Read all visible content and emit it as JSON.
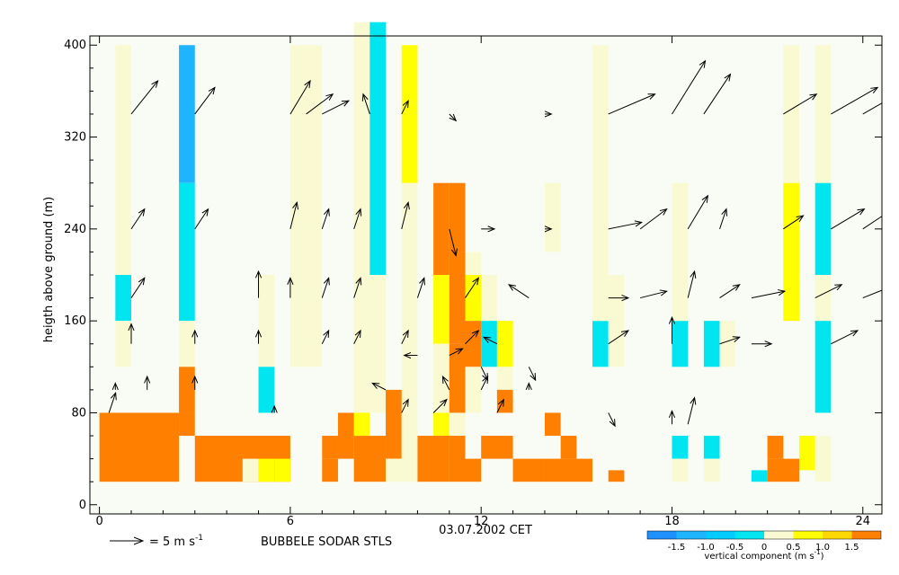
{
  "chart_data": {
    "type": "heatmap",
    "title": "BUBBELE SODAR STLS",
    "xlabel": "03.07.2002 CET",
    "ylabel": "heigth above ground (m)",
    "xlim": [
      -0.3,
      24.6
    ],
    "ylim": [
      -8,
      408
    ],
    "x_ticks": [
      "0",
      "6",
      "12",
      "18",
      "24"
    ],
    "y_ticks": [
      "0",
      "80",
      "160",
      "240",
      "320",
      "400"
    ],
    "time_step_h": 0.5,
    "height_step_m": 20,
    "colorbar": {
      "label": "vertical component (m s",
      "label_exponent": "-1",
      "label_close": ")",
      "tick_labels": [
        "-1.5",
        "-1.0",
        "-0.5",
        "0",
        "0.5",
        "1.0",
        "1.5"
      ],
      "bins": [
        {
          "range": [
            -2.0,
            -1.5
          ],
          "color": "#1e90ff"
        },
        {
          "range": [
            -1.5,
            -1.0
          ],
          "color": "#1eb4ff"
        },
        {
          "range": [
            -1.0,
            -0.5
          ],
          "color": "#00ccff"
        },
        {
          "range": [
            -0.5,
            0.0
          ],
          "color": "#00e5f0"
        },
        {
          "range": [
            0.0,
            0.5
          ],
          "color": "#fafad2"
        },
        {
          "range": [
            0.5,
            1.0
          ],
          "color": "#ffff00"
        },
        {
          "range": [
            1.0,
            1.5
          ],
          "color": "#ffd700"
        },
        {
          "range": [
            1.5,
            2.0
          ],
          "color": "#ff7f00"
        }
      ]
    },
    "vertical_component_cells": {
      "fields": [
        "time_start_h",
        "time_end_h",
        "height_bottom_m",
        "height_top_m",
        "color"
      ],
      "rows": [
        [
          0.5,
          1.0,
          200,
          400,
          "#fafad2"
        ],
        [
          0.5,
          1.0,
          160,
          200,
          "#00e5f0"
        ],
        [
          0.5,
          1.0,
          120,
          160,
          "#fafad2"
        ],
        [
          2.5,
          3.0,
          280,
          400,
          "#1eb4ff"
        ],
        [
          2.5,
          3.0,
          160,
          280,
          "#00e5f0"
        ],
        [
          2.5,
          3.0,
          120,
          160,
          "#fafad2"
        ],
        [
          2.5,
          3.0,
          80,
          120,
          "#ff7f00"
        ],
        [
          5.0,
          5.5,
          120,
          200,
          "#fafad2"
        ],
        [
          5.0,
          5.5,
          80,
          120,
          "#00e5f0"
        ],
        [
          6.0,
          7.0,
          120,
          400,
          "#fafad2"
        ],
        [
          8.0,
          8.5,
          200,
          420,
          "#fafad2"
        ],
        [
          8.0,
          8.5,
          80,
          200,
          "#fafad2"
        ],
        [
          8.5,
          9.0,
          200,
          420,
          "#00e5f0"
        ],
        [
          8.5,
          9.0,
          80,
          200,
          "#fafad2"
        ],
        [
          9.5,
          10.0,
          280,
          400,
          "#ffff00"
        ],
        [
          9.5,
          10.0,
          80,
          280,
          "#fafad2"
        ],
        [
          8.0,
          8.5,
          60,
          80,
          "#ffff00"
        ],
        [
          10.5,
          11.0,
          60,
          80,
          "#ffff00"
        ],
        [
          10.5,
          11.0,
          200,
          280,
          "#ff7f00"
        ],
        [
          10.5,
          11.0,
          140,
          200,
          "#ffff00"
        ],
        [
          10.5,
          11.0,
          80,
          140,
          "#fafad2"
        ],
        [
          11.0,
          11.5,
          220,
          280,
          "#ff7f00"
        ],
        [
          11.0,
          11.5,
          140,
          220,
          "#ff7f00"
        ],
        [
          11.0,
          11.5,
          80,
          140,
          "#ff7f00"
        ],
        [
          11.5,
          12.0,
          200,
          220,
          "#fafad2"
        ],
        [
          11.5,
          12.0,
          160,
          200,
          "#ffff00"
        ],
        [
          11.5,
          12.0,
          120,
          160,
          "#ff7f00"
        ],
        [
          11.5,
          12.0,
          80,
          120,
          "#fafad2"
        ],
        [
          12.0,
          12.5,
          160,
          200,
          "#fafad2"
        ],
        [
          12.0,
          12.5,
          120,
          160,
          "#00e5f0"
        ],
        [
          12.5,
          13.0,
          120,
          160,
          "#ffff00"
        ],
        [
          12.5,
          13.0,
          80,
          120,
          "#fafad2"
        ],
        [
          11.0,
          11.5,
          60,
          80,
          "#fafad2"
        ],
        [
          14.0,
          14.5,
          220,
          280,
          "#fafad2"
        ],
        [
          15.5,
          16.0,
          200,
          400,
          "#fafad2"
        ],
        [
          15.5,
          16.0,
          120,
          160,
          "#00e5f0"
        ],
        [
          15.5,
          16.0,
          160,
          200,
          "#fafad2"
        ],
        [
          16.0,
          16.5,
          120,
          200,
          "#fafad2"
        ],
        [
          18.0,
          18.5,
          120,
          160,
          "#00e5f0"
        ],
        [
          18.0,
          18.5,
          160,
          280,
          "#fafad2"
        ],
        [
          18.0,
          18.5,
          40,
          60,
          "#00e5f0"
        ],
        [
          18.0,
          18.5,
          20,
          40,
          "#fafad2"
        ],
        [
          19.0,
          19.5,
          120,
          160,
          "#00e5f0"
        ],
        [
          19.5,
          20.0,
          120,
          160,
          "#fafad2"
        ],
        [
          19.0,
          19.5,
          40,
          60,
          "#00e5f0"
        ],
        [
          19.0,
          19.5,
          20,
          40,
          "#fafad2"
        ],
        [
          20.5,
          21.0,
          20,
          30,
          "#00e5f0"
        ],
        [
          21.5,
          22.0,
          280,
          400,
          "#fafad2"
        ],
        [
          21.5,
          22.0,
          160,
          280,
          "#ffff00"
        ],
        [
          22.5,
          23.0,
          200,
          400,
          "#fafad2"
        ],
        [
          22.5,
          23.0,
          200,
          280,
          "#00e5f0"
        ],
        [
          22.5,
          23.0,
          160,
          200,
          "#fafad2"
        ],
        [
          22.5,
          23.0,
          80,
          160,
          "#00e5f0"
        ],
        [
          22.0,
          22.5,
          30,
          60,
          "#ffff00"
        ],
        [
          22.5,
          23.0,
          20,
          60,
          "#fafad2"
        ],
        [
          0.0,
          2.5,
          20,
          80,
          "#ff7f00"
        ],
        [
          2.5,
          3.0,
          60,
          80,
          "#ff7f00"
        ],
        [
          3.0,
          6.0,
          20,
          60,
          "#ff7f00"
        ],
        [
          4.5,
          5.0,
          20,
          40,
          "#fafad2"
        ],
        [
          5.0,
          5.5,
          20,
          40,
          "#ffff00"
        ],
        [
          5.5,
          6.0,
          20,
          40,
          "#ffff00"
        ],
        [
          7.0,
          7.5,
          40,
          60,
          "#ff7f00"
        ],
        [
          7.0,
          7.5,
          20,
          40,
          "#ff7f00"
        ],
        [
          7.5,
          8.0,
          40,
          80,
          "#ff7f00"
        ],
        [
          8.0,
          9.0,
          20,
          60,
          "#ff7f00"
        ],
        [
          9.0,
          9.5,
          40,
          100,
          "#ff7f00"
        ],
        [
          9.0,
          9.5,
          20,
          40,
          "#fafad2"
        ],
        [
          9.5,
          10.0,
          20,
          80,
          "#fafad2"
        ],
        [
          10.0,
          11.0,
          20,
          60,
          "#ff7f00"
        ],
        [
          11.0,
          11.5,
          20,
          60,
          "#ff7f00"
        ],
        [
          11.5,
          12.0,
          20,
          40,
          "#ff7f00"
        ],
        [
          12.0,
          13.0,
          40,
          60,
          "#ff7f00"
        ],
        [
          12.5,
          13.0,
          80,
          100,
          "#ff7f00"
        ],
        [
          13.0,
          14.0,
          20,
          40,
          "#ff7f00"
        ],
        [
          14.0,
          15.5,
          20,
          40,
          "#ff7f00"
        ],
        [
          14.5,
          15.0,
          40,
          60,
          "#ff7f00"
        ],
        [
          14.0,
          14.5,
          60,
          80,
          "#ff7f00"
        ],
        [
          16.0,
          16.5,
          20,
          30,
          "#ff7f00"
        ],
        [
          21.0,
          21.5,
          40,
          60,
          "#ff7f00"
        ],
        [
          21.0,
          22.0,
          20,
          40,
          "#ff7f00"
        ]
      ]
    },
    "wind_vectors": {
      "reference_label": "= 5 m s",
      "reference_exponent": "-1",
      "reference_speed_ms": 5,
      "fields": [
        "time_h",
        "height_m",
        "u_ms",
        "v_ms"
      ],
      "rows": [
        [
          1,
          340,
          4,
          5
        ],
        [
          3,
          340,
          3,
          4
        ],
        [
          6,
          340,
          3,
          5
        ],
        [
          6.5,
          340,
          4,
          3
        ],
        [
          7,
          340,
          4,
          2
        ],
        [
          8.5,
          340,
          -1,
          3
        ],
        [
          9.5,
          340,
          1,
          2
        ],
        [
          11,
          340,
          1,
          -1
        ],
        [
          14,
          340,
          1,
          0
        ],
        [
          16,
          340,
          7,
          3
        ],
        [
          18,
          340,
          5,
          8
        ],
        [
          19,
          340,
          4,
          6
        ],
        [
          21.5,
          340,
          5,
          3
        ],
        [
          23,
          340,
          7,
          4
        ],
        [
          24,
          340,
          7,
          4
        ],
        [
          1,
          240,
          2,
          3
        ],
        [
          3,
          240,
          2,
          3
        ],
        [
          6,
          240,
          1,
          4
        ],
        [
          7,
          240,
          1,
          3
        ],
        [
          8,
          240,
          1,
          3
        ],
        [
          9.5,
          240,
          1,
          4
        ],
        [
          11,
          240,
          1,
          -4
        ],
        [
          12,
          240,
          2,
          0
        ],
        [
          14,
          240,
          1,
          0
        ],
        [
          16,
          240,
          5,
          1
        ],
        [
          17,
          240,
          4,
          3
        ],
        [
          18.5,
          240,
          3,
          5
        ],
        [
          19.5,
          240,
          1,
          3
        ],
        [
          21.5,
          240,
          3,
          2
        ],
        [
          23,
          240,
          5,
          3
        ],
        [
          24,
          240,
          6,
          4
        ],
        [
          1,
          180,
          2,
          3
        ],
        [
          5,
          180,
          0,
          4
        ],
        [
          6,
          180,
          0,
          3
        ],
        [
          7,
          180,
          1,
          3
        ],
        [
          8,
          180,
          1,
          3
        ],
        [
          10,
          180,
          1,
          3
        ],
        [
          11.5,
          180,
          2,
          3
        ],
        [
          13.5,
          180,
          -3,
          2
        ],
        [
          16,
          180,
          3,
          0
        ],
        [
          17,
          180,
          4,
          1
        ],
        [
          18.5,
          180,
          1,
          4
        ],
        [
          19.5,
          180,
          3,
          2
        ],
        [
          20.5,
          180,
          5,
          1
        ],
        [
          22.5,
          180,
          4,
          2
        ],
        [
          24,
          180,
          5,
          2
        ],
        [
          1,
          140,
          0,
          3
        ],
        [
          3,
          140,
          0,
          2
        ],
        [
          5,
          140,
          0,
          2
        ],
        [
          7,
          140,
          1,
          2
        ],
        [
          8,
          140,
          1,
          2
        ],
        [
          9.5,
          140,
          1,
          2
        ],
        [
          11.5,
          140,
          2,
          2
        ],
        [
          12.5,
          140,
          -2,
          1
        ],
        [
          16,
          140,
          3,
          2
        ],
        [
          18,
          140,
          0,
          4
        ],
        [
          19.5,
          140,
          3,
          1
        ],
        [
          20.5,
          140,
          3,
          0
        ],
        [
          23,
          140,
          4,
          2
        ],
        [
          10,
          130,
          -2,
          0
        ],
        [
          11,
          130,
          2,
          1
        ],
        [
          12,
          120,
          1,
          -2
        ],
        [
          13.5,
          120,
          1,
          -2
        ],
        [
          0.5,
          100,
          0,
          1
        ],
        [
          1.5,
          100,
          0,
          2
        ],
        [
          3,
          100,
          0,
          2
        ],
        [
          9,
          100,
          -2,
          1
        ],
        [
          11,
          100,
          -1,
          2
        ],
        [
          12,
          100,
          1,
          2
        ],
        [
          13.5,
          100,
          0,
          1
        ],
        [
          0.3,
          80,
          1,
          3
        ],
        [
          5.5,
          80,
          0,
          1
        ],
        [
          9.5,
          80,
          1,
          2
        ],
        [
          10.5,
          80,
          2,
          2
        ],
        [
          12.5,
          80,
          1,
          2
        ],
        [
          16,
          80,
          1,
          -2
        ],
        [
          18,
          70,
          0,
          2
        ],
        [
          18.5,
          70,
          1,
          4
        ]
      ]
    }
  }
}
